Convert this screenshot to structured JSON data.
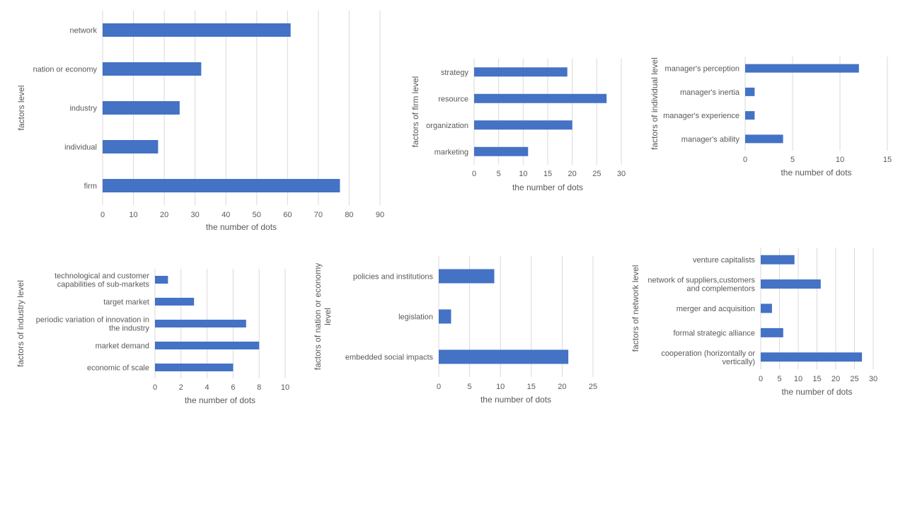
{
  "colors": {
    "bar": "#4472c4",
    "grid": "#d9d9d9",
    "text": "#595959"
  },
  "chart_data": [
    {
      "type": "bar",
      "orientation": "horizontal",
      "categories": [
        "network",
        "nation or economy",
        "industry",
        "individual",
        "firm"
      ],
      "values": [
        61,
        32,
        25,
        18,
        77
      ],
      "xlabel": "the number of dots",
      "ylabel": "factors level",
      "xlim": [
        0,
        90
      ],
      "xticks": [
        0,
        10,
        20,
        30,
        40,
        50,
        60,
        70,
        80,
        90
      ],
      "grid": true
    },
    {
      "type": "bar",
      "orientation": "horizontal",
      "categories": [
        "strategy",
        "resource",
        "organization",
        "marketing"
      ],
      "values": [
        19,
        27,
        20,
        11
      ],
      "xlabel": "the number of dots",
      "ylabel": "factors of firm level",
      "xlim": [
        0,
        30
      ],
      "xticks": [
        0,
        5,
        10,
        15,
        20,
        25,
        30
      ],
      "grid": true
    },
    {
      "type": "bar",
      "orientation": "horizontal",
      "categories": [
        "manager's perception",
        "manager's inertia",
        "manager's experience",
        "manager's ability"
      ],
      "values": [
        12,
        1,
        1,
        4
      ],
      "xlabel": "the number of dots",
      "ylabel": "factors of individual level",
      "xlim": [
        0,
        15
      ],
      "xticks": [
        0,
        5,
        10,
        15
      ],
      "grid": true
    },
    {
      "type": "bar",
      "orientation": "horizontal",
      "categories": [
        [
          "technological and customer",
          "capabilities of sub-markets"
        ],
        [
          "target market"
        ],
        [
          "periodic variation of innovation in",
          "the industry"
        ],
        [
          "market demand"
        ],
        [
          "economic of scale"
        ]
      ],
      "values": [
        1,
        3,
        7,
        8,
        6
      ],
      "xlabel": "the number of dots",
      "ylabel": "factors of industry level",
      "xlim": [
        0,
        10
      ],
      "xticks": [
        0,
        2,
        4,
        6,
        8,
        10
      ],
      "grid": true
    },
    {
      "type": "bar",
      "orientation": "horizontal",
      "categories": [
        "policies and institutions",
        "legislation",
        "embedded social impacts"
      ],
      "values": [
        9,
        2,
        21
      ],
      "xlabel": "the number of dots",
      "ylabel": [
        "factors of nation or economy",
        "level"
      ],
      "xlim": [
        0,
        25
      ],
      "xticks": [
        0,
        5,
        10,
        15,
        20,
        25
      ],
      "grid": true
    },
    {
      "type": "bar",
      "orientation": "horizontal",
      "categories": [
        [
          "venture capitalists"
        ],
        [
          "network of suppliers,customers",
          "and complementors"
        ],
        [
          "merger and acquisition"
        ],
        [
          "formal strategic alliance"
        ],
        [
          "cooperation (horizontally or",
          "vertically)"
        ]
      ],
      "values": [
        9,
        16,
        3,
        6,
        27
      ],
      "xlabel": "the number of dots",
      "ylabel": "factors of network level",
      "xlim": [
        0,
        30
      ],
      "xticks": [
        0,
        5,
        10,
        15,
        20,
        25,
        30
      ],
      "grid": true
    }
  ]
}
